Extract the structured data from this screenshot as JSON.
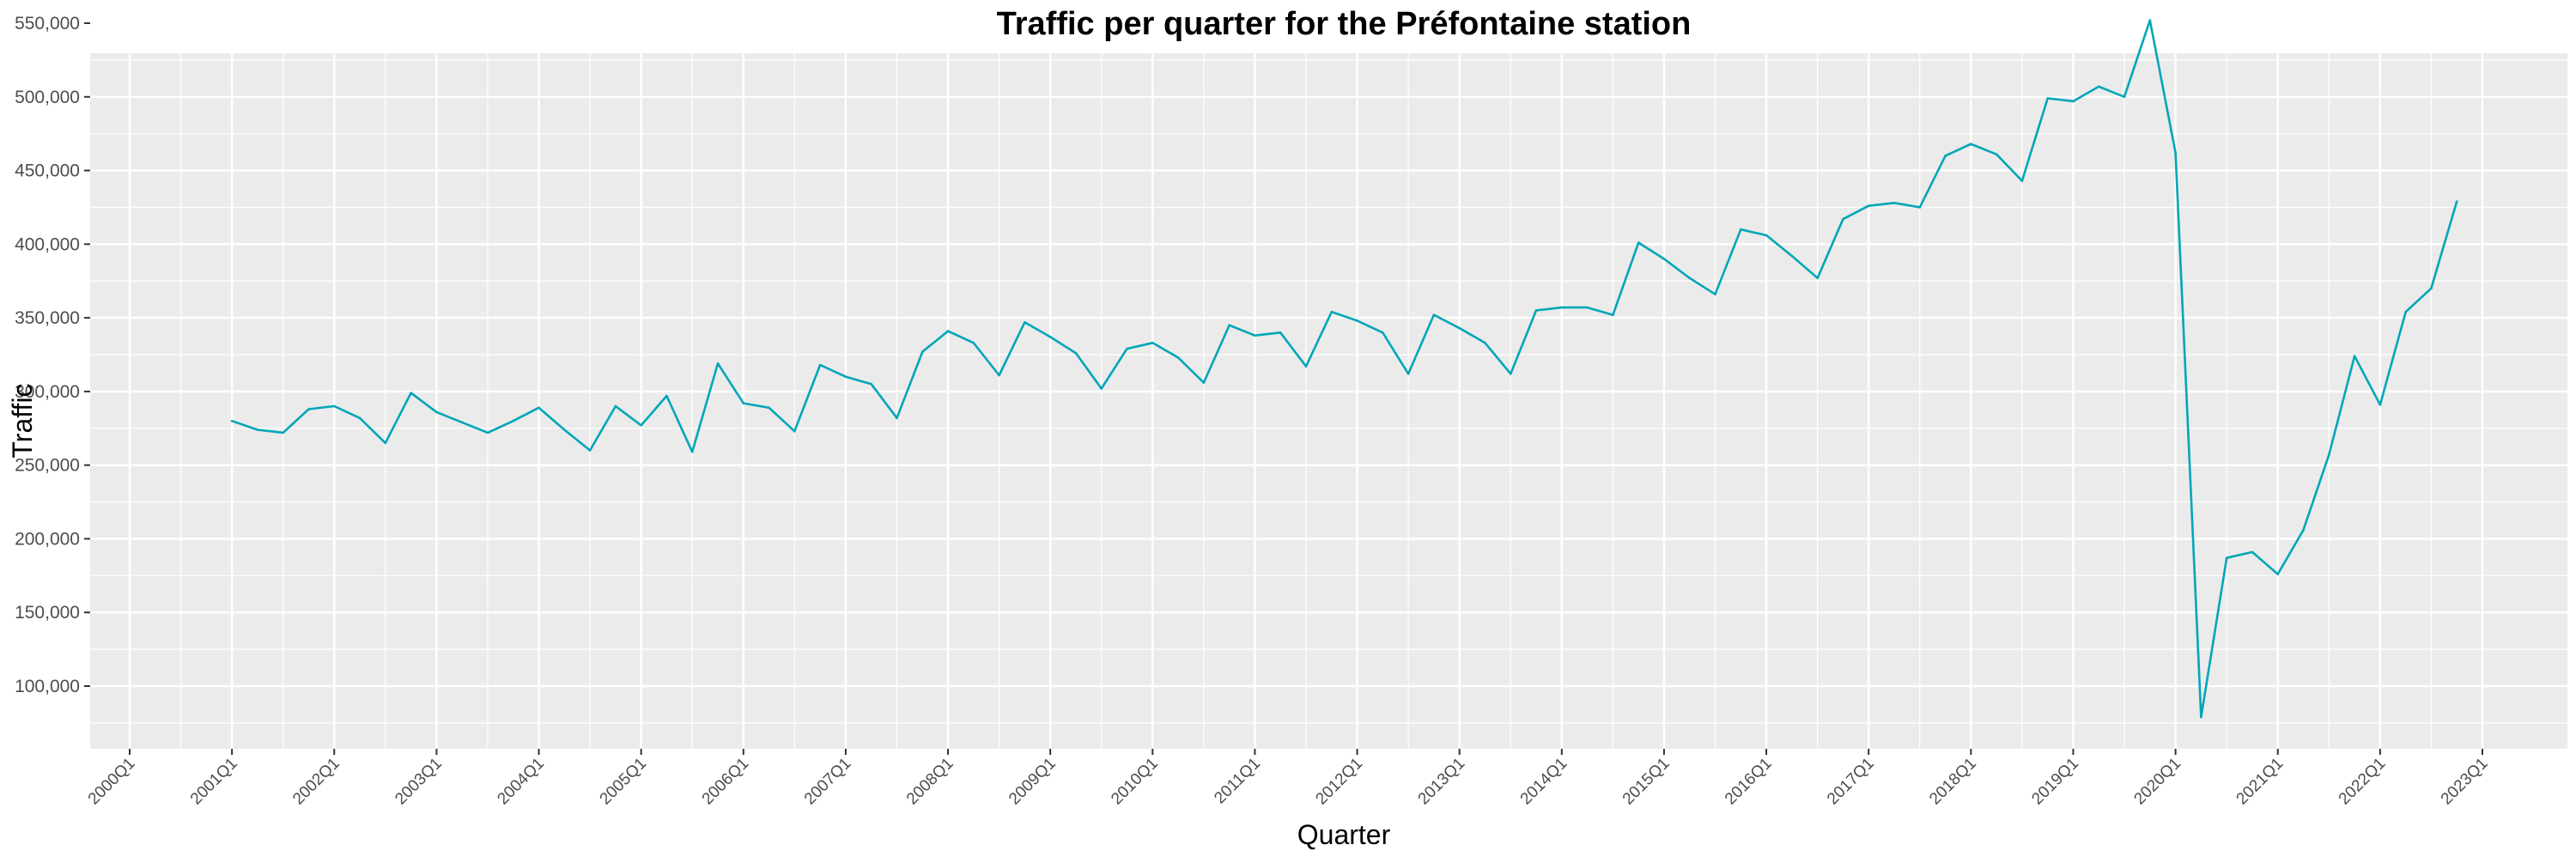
{
  "chart_data": {
    "type": "line",
    "title": "Traffic per quarter for the Préfontaine station",
    "xlabel": "Quarter",
    "ylabel": "Traffic",
    "x_ticks": [
      "2000Q1",
      "2001Q1",
      "2002Q1",
      "2003Q1",
      "2004Q1",
      "2005Q1",
      "2006Q1",
      "2007Q1",
      "2008Q1",
      "2009Q1",
      "2010Q1",
      "2011Q1",
      "2012Q1",
      "2013Q1",
      "2014Q1",
      "2015Q1",
      "2016Q1",
      "2017Q1",
      "2018Q1",
      "2019Q1",
      "2020Q1",
      "2021Q1",
      "2022Q1",
      "2023Q1"
    ],
    "y_ticks": [
      "100,000",
      "150,000",
      "200,000",
      "250,000",
      "300,000",
      "350,000",
      "400,000",
      "450,000",
      "500,000",
      "550,000"
    ],
    "y_tick_values": [
      100000,
      150000,
      200000,
      250000,
      300000,
      350000,
      400000,
      450000,
      500000,
      550000
    ],
    "xlim": [
      "2000Q1",
      "2023Q1"
    ],
    "ylim": [
      55000,
      580000
    ],
    "grid": true,
    "legend": "none",
    "colors": {
      "line": "#00A6B8",
      "panel": "#EBEBEB",
      "grid": "#FFFFFF"
    },
    "series": [
      {
        "x": [
          "2001Q1",
          "2001Q2",
          "2001Q3",
          "2001Q4",
          "2002Q1",
          "2002Q2",
          "2002Q3",
          "2002Q4",
          "2003Q1",
          "2003Q2",
          "2003Q3",
          "2003Q4",
          "2004Q1",
          "2004Q2",
          "2004Q3",
          "2004Q4",
          "2005Q1",
          "2005Q2",
          "2005Q3",
          "2005Q4",
          "2006Q1",
          "2006Q2",
          "2006Q3",
          "2006Q4",
          "2007Q1",
          "2007Q2",
          "2007Q3",
          "2007Q4",
          "2008Q1",
          "2008Q2",
          "2008Q3",
          "2008Q4",
          "2009Q1",
          "2009Q2",
          "2009Q3",
          "2009Q4",
          "2010Q1",
          "2010Q2",
          "2010Q3",
          "2010Q4",
          "2011Q1",
          "2011Q2",
          "2011Q3",
          "2011Q4",
          "2012Q1",
          "2012Q2",
          "2012Q3",
          "2012Q4",
          "2013Q1",
          "2013Q2",
          "2013Q3",
          "2013Q4",
          "2014Q1",
          "2014Q2",
          "2014Q3",
          "2014Q4",
          "2015Q1",
          "2015Q2",
          "2015Q3",
          "2015Q4",
          "2016Q1",
          "2016Q2",
          "2016Q3",
          "2016Q4",
          "2017Q1",
          "2017Q2",
          "2017Q3",
          "2017Q4",
          "2018Q1",
          "2018Q2",
          "2018Q3",
          "2018Q4",
          "2019Q1",
          "2019Q2",
          "2019Q3",
          "2019Q4",
          "2020Q1",
          "2020Q2",
          "2020Q3",
          "2020Q4",
          "2021Q1",
          "2021Q2",
          "2021Q3",
          "2021Q4",
          "2022Q1",
          "2022Q2",
          "2022Q3",
          "2022Q4"
        ],
        "values": [
          280000,
          274000,
          272000,
          288000,
          290000,
          282000,
          265000,
          299000,
          286000,
          279000,
          272000,
          280000,
          289000,
          274000,
          260000,
          290000,
          277000,
          297000,
          259000,
          319000,
          292000,
          289000,
          273000,
          318000,
          310000,
          305000,
          282000,
          327000,
          341000,
          333000,
          311000,
          347000,
          337000,
          326000,
          302000,
          329000,
          333000,
          323000,
          306000,
          345000,
          338000,
          340000,
          317000,
          354000,
          348000,
          340000,
          312000,
          352000,
          343000,
          333000,
          312000,
          355000,
          357000,
          357000,
          352000,
          401000,
          390000,
          377000,
          366000,
          410000,
          406000,
          392000,
          377000,
          417000,
          426000,
          428000,
          425000,
          460000,
          468000,
          461000,
          443000,
          499000,
          497000,
          507000,
          500000,
          552000,
          462000,
          79000,
          187000,
          191000,
          176000,
          206000,
          257000,
          324000,
          291000,
          354000,
          370000,
          429000
        ]
      }
    ]
  }
}
